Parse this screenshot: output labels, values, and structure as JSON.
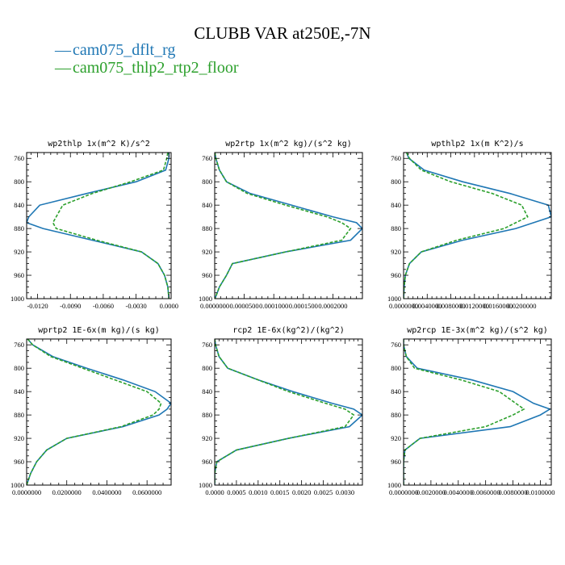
{
  "figure": {
    "title": "CLUBB VAR at250E,-7N",
    "legend": [
      {
        "label": "cam075_dflt_rg",
        "color": "#1f77b4",
        "dash": "solid"
      },
      {
        "label": "cam075_thlp2_rtp2_floor",
        "color": "#2ca02c",
        "dash": "dashed"
      }
    ],
    "legend_marker": "—"
  },
  "chart_data": [
    {
      "type": "line",
      "title": "wp2thlp  1x(m^2 K)/s^2",
      "xlim": [
        -0.013,
        0.0002
      ],
      "xticks": [
        -0.012,
        -0.009,
        -0.006,
        -0.003,
        0.0
      ],
      "xtick_labels": [
        "-0.0120",
        "-0.0090",
        "-0.0060",
        "-0.0030",
        "0.0000"
      ],
      "ylim": [
        1000,
        750
      ],
      "yticks": [
        760,
        800,
        840,
        880,
        920,
        960,
        1000
      ],
      "y": [
        750,
        760,
        780,
        800,
        820,
        840,
        860,
        870,
        880,
        900,
        920,
        940,
        960,
        980,
        1000
      ],
      "series": [
        {
          "name": "cam075_dflt_rg",
          "values": [
            0.0,
            0.0,
            -0.0003,
            -0.003,
            -0.0075,
            -0.0118,
            -0.0128,
            -0.013,
            -0.0115,
            -0.007,
            -0.0025,
            -0.001,
            -0.0004,
            -0.0001,
            0.0
          ]
        },
        {
          "name": "cam075_thlp2_rtp2_floor",
          "values": [
            -0.0001,
            -0.0002,
            -0.0005,
            -0.0035,
            -0.007,
            -0.0097,
            -0.0103,
            -0.0106,
            -0.0103,
            -0.0066,
            -0.0025,
            -0.001,
            -0.0004,
            -0.0001,
            0.0
          ]
        }
      ]
    },
    {
      "type": "line",
      "title": "wp2rtp  1x(m^2 kg)/(s^2 kg)",
      "xlim": [
        0.0,
        0.00025
      ],
      "xticks": [
        0.0,
        5e-05,
        0.0001,
        0.00015,
        0.0002
      ],
      "xtick_labels": [
        "0.0000000",
        "0.0000500",
        "0.0001000",
        "0.0001500",
        "0.0002000"
      ],
      "ylim": [
        1000,
        750
      ],
      "yticks": [
        760,
        800,
        840,
        880,
        920,
        960,
        1000
      ],
      "y": [
        750,
        760,
        780,
        800,
        820,
        840,
        860,
        870,
        880,
        900,
        920,
        940,
        960,
        980,
        1000
      ],
      "series": [
        {
          "name": "cam075_dflt_rg",
          "values": [
            3e-07,
            2e-06,
            8e-06,
            2e-05,
            6e-05,
            0.00013,
            0.0002,
            0.00024,
            0.00025,
            0.00023,
            0.00012,
            3e-05,
            2e-05,
            8e-06,
            5e-07
          ]
        },
        {
          "name": "cam075_thlp2_rtp2_floor",
          "values": [
            3e-07,
            2e-06,
            8e-06,
            2e-05,
            5.5e-05,
            0.00012,
            0.00019,
            0.000215,
            0.00023,
            0.000215,
            0.00012,
            3e-05,
            2e-05,
            8e-06,
            5e-07
          ]
        }
      ]
    },
    {
      "type": "line",
      "title": "wpthlp2  1x(m K^2)/s",
      "xlim": [
        0.0,
        0.025
      ],
      "xticks": [
        0.0,
        0.004,
        0.008,
        0.012,
        0.016,
        0.02
      ],
      "xtick_labels": [
        "0.0000000",
        "0.0040000",
        "0.0080000",
        "0.0120000",
        "0.0160000",
        "0.0200000"
      ],
      "ylim": [
        1000,
        750
      ],
      "yticks": [
        760,
        800,
        840,
        880,
        920,
        960,
        1000
      ],
      "y": [
        750,
        760,
        780,
        800,
        820,
        840,
        860,
        870,
        880,
        900,
        920,
        940,
        960,
        980,
        1000
      ],
      "series": [
        {
          "name": "cam075_dflt_rg",
          "values": [
            0.0005,
            0.0009,
            0.0035,
            0.01,
            0.018,
            0.0245,
            0.025,
            0.022,
            0.019,
            0.01,
            0.003,
            0.001,
            0.0003,
            0.0001,
            0.0
          ]
        },
        {
          "name": "cam075_thlp2_rtp2_floor",
          "values": [
            0.0005,
            0.001,
            0.003,
            0.008,
            0.015,
            0.02,
            0.021,
            0.019,
            0.017,
            0.009,
            0.003,
            0.001,
            0.0003,
            0.0001,
            0.0
          ]
        }
      ]
    },
    {
      "type": "line",
      "title": "wprtp2  1E-6x(m kg)/(s kg)",
      "xlim": [
        0.0,
        0.072
      ],
      "xticks": [
        0.0,
        0.02,
        0.04,
        0.06
      ],
      "xtick_labels": [
        "0.0000000",
        "0.0200000",
        "0.0400000",
        "0.0600000"
      ],
      "ylim": [
        1000,
        750
      ],
      "yticks": [
        760,
        800,
        840,
        880,
        920,
        960,
        1000
      ],
      "y": [
        750,
        760,
        780,
        800,
        820,
        840,
        860,
        870,
        880,
        900,
        920,
        940,
        960,
        980,
        1000
      ],
      "series": [
        {
          "name": "cam075_dflt_rg",
          "values": [
            0.0005,
            0.003,
            0.013,
            0.03,
            0.048,
            0.064,
            0.072,
            0.07,
            0.066,
            0.048,
            0.02,
            0.01,
            0.005,
            0.002,
            0.0
          ]
        },
        {
          "name": "cam075_thlp2_rtp2_floor",
          "values": [
            0.0005,
            0.003,
            0.012,
            0.028,
            0.044,
            0.06,
            0.067,
            0.066,
            0.063,
            0.047,
            0.02,
            0.01,
            0.005,
            0.002,
            0.0
          ]
        }
      ]
    },
    {
      "type": "line",
      "title": "rcp2  1E-6x(kg^2)/(kg^2)",
      "xlim": [
        0.0,
        0.0034
      ],
      "xticks": [
        0.0,
        0.0005,
        0.001,
        0.0015,
        0.002,
        0.0025,
        0.003
      ],
      "xtick_labels": [
        "0.0000",
        "0.0005",
        "0.0010",
        "0.0015",
        "0.0020",
        "0.0025",
        "0.0030"
      ],
      "ylim": [
        1000,
        750
      ],
      "yticks": [
        760,
        800,
        840,
        880,
        920,
        960,
        1000
      ],
      "y": [
        750,
        760,
        780,
        800,
        820,
        840,
        860,
        870,
        880,
        900,
        920,
        940,
        960,
        980,
        1000
      ],
      "series": [
        {
          "name": "cam075_dflt_rg",
          "values": [
            0.0,
            2e-05,
            0.0001,
            0.0003,
            0.001,
            0.0018,
            0.0027,
            0.0032,
            0.0034,
            0.0031,
            0.0017,
            0.0005,
            5e-05,
            0.0,
            0.0
          ]
        },
        {
          "name": "cam075_thlp2_rtp2_floor",
          "values": [
            0.0,
            2e-05,
            0.0001,
            0.0003,
            0.001,
            0.0017,
            0.00255,
            0.003,
            0.0032,
            0.003,
            0.0017,
            0.0005,
            5e-05,
            0.0,
            0.0
          ]
        }
      ]
    },
    {
      "type": "line",
      "title": "wp2rcp  1E-3x(m^2 kg)/(s^2 kg)",
      "xlim": [
        0.0,
        0.0108
      ],
      "xticks": [
        0.0,
        0.002,
        0.004,
        0.006,
        0.008,
        0.01
      ],
      "xtick_labels": [
        "0.0000000",
        "0.0020000",
        "0.0040000",
        "0.0060000",
        "0.0080000",
        "0.0100000"
      ],
      "ylim": [
        1000,
        750
      ],
      "yticks": [
        760,
        800,
        840,
        880,
        920,
        960,
        1000
      ],
      "y": [
        750,
        760,
        780,
        800,
        820,
        840,
        860,
        870,
        880,
        900,
        920,
        940,
        960,
        980,
        1000
      ],
      "series": [
        {
          "name": "cam075_dflt_rg",
          "values": [
            0.0,
            0.0,
            0.0002,
            0.001,
            0.005,
            0.008,
            0.0095,
            0.0107,
            0.01,
            0.0078,
            0.0012,
            0.0001,
            0.0,
            0.0,
            0.0
          ]
        },
        {
          "name": "cam075_thlp2_rtp2_floor",
          "values": [
            0.0,
            0.0,
            0.0002,
            0.0008,
            0.0042,
            0.007,
            0.0082,
            0.0088,
            0.008,
            0.006,
            0.0012,
            0.0001,
            0.0,
            0.0,
            0.0
          ]
        }
      ]
    }
  ]
}
